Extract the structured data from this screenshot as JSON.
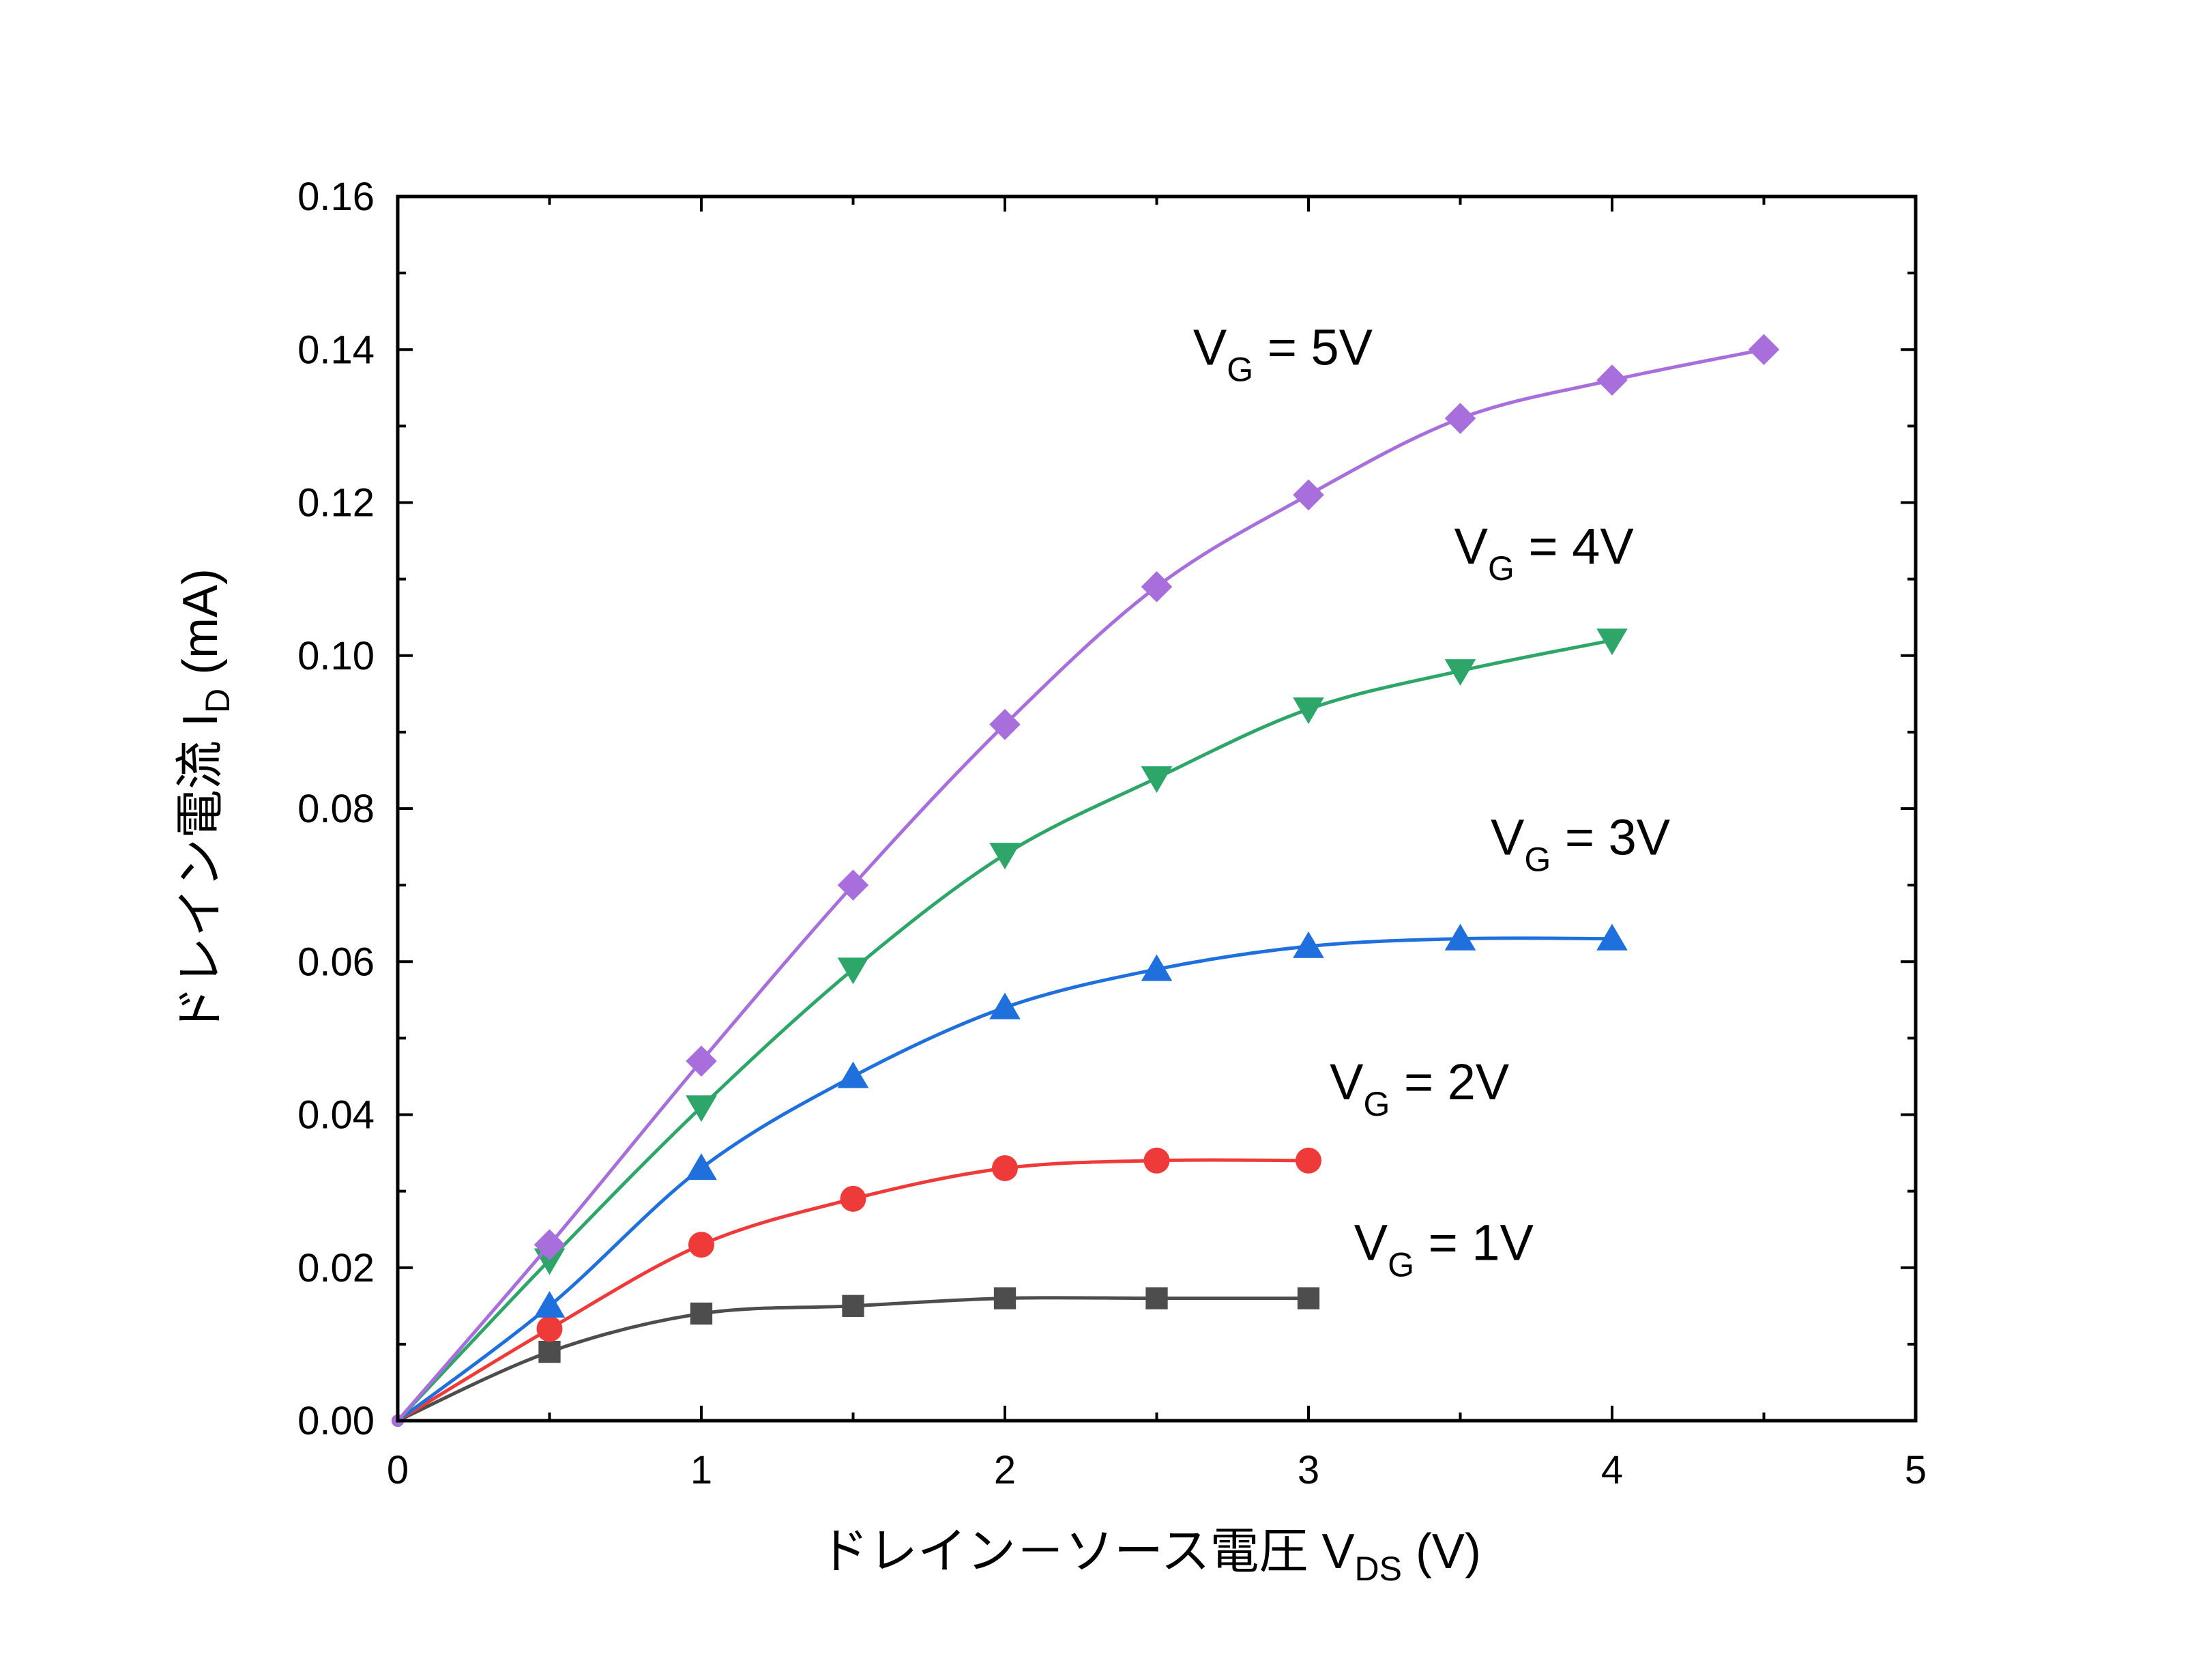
{
  "chart_data": {
    "type": "line",
    "title": "",
    "xlabel": {
      "prefix": "ドレイン－ソース電圧 V",
      "sub": "DS",
      "suffix": " (V)"
    },
    "ylabel": {
      "prefix": "ドレイン電流 I",
      "sub": "D",
      "suffix": " (mA)"
    },
    "xlim": [
      0,
      5
    ],
    "ylim": [
      0,
      0.16
    ],
    "x_ticks": [
      "0",
      "1",
      "2",
      "3",
      "4",
      "5"
    ],
    "y_ticks": [
      "0.00",
      "0.02",
      "0.04",
      "0.06",
      "0.08",
      "0.10",
      "0.12",
      "0.14",
      "0.16"
    ],
    "grid": false,
    "series": [
      {
        "label": {
          "prefix": "V",
          "sub": "G",
          "suffix": " = 1V"
        },
        "color": "#4d4d4d",
        "marker": "square",
        "x": [
          0,
          0.5,
          1,
          1.5,
          2,
          2.5,
          3
        ],
        "y": [
          0,
          0.009,
          0.014,
          0.015,
          0.016,
          0.016,
          0.016
        ],
        "label_at": [
          3.15,
          0.021
        ]
      },
      {
        "label": {
          "prefix": "V",
          "sub": "G",
          "suffix": " = 2V"
        },
        "color": "#ef3a3a",
        "marker": "circle",
        "x": [
          0,
          0.5,
          1,
          1.5,
          2,
          2.5,
          3
        ],
        "y": [
          0,
          0.012,
          0.023,
          0.029,
          0.033,
          0.034,
          0.034
        ],
        "label_at": [
          3.07,
          0.042
        ]
      },
      {
        "label": {
          "prefix": "V",
          "sub": "G",
          "suffix": " = 3V"
        },
        "color": "#1f6fdc",
        "marker": "triangle-up",
        "x": [
          0,
          0.5,
          1,
          1.5,
          2,
          2.5,
          3,
          3.5,
          4
        ],
        "y": [
          0,
          0.015,
          0.033,
          0.045,
          0.054,
          0.059,
          0.062,
          0.063,
          0.063
        ],
        "label_at": [
          3.6,
          0.074
        ]
      },
      {
        "label": {
          "prefix": "V",
          "sub": "G",
          "suffix": " = 4V"
        },
        "color": "#2ea66a",
        "marker": "triangle-down",
        "x": [
          0,
          0.5,
          1,
          1.5,
          2,
          2.5,
          3,
          3.5,
          4
        ],
        "y": [
          0,
          0.021,
          0.041,
          0.059,
          0.074,
          0.084,
          0.093,
          0.098,
          0.102
        ],
        "label_at": [
          3.48,
          0.112
        ]
      },
      {
        "label": {
          "prefix": "V",
          "sub": "G",
          "suffix": " = 5V"
        },
        "color": "#a86fdc",
        "marker": "diamond",
        "x": [
          0,
          0.5,
          1,
          1.5,
          2,
          2.5,
          3,
          3.5,
          4,
          4.5
        ],
        "y": [
          0,
          0.023,
          0.047,
          0.07,
          0.091,
          0.109,
          0.121,
          0.131,
          0.136,
          0.14
        ],
        "label_at": [
          2.62,
          0.138
        ]
      }
    ]
  }
}
